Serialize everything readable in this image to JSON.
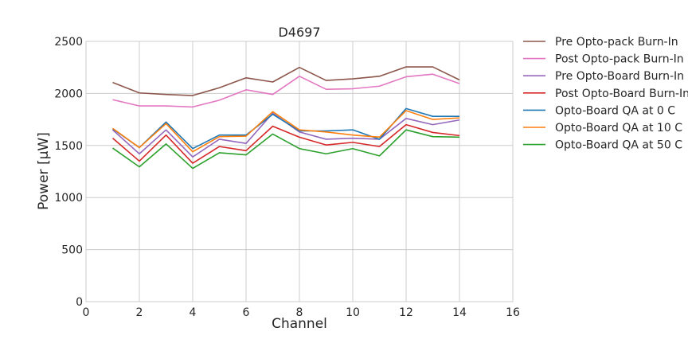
{
  "chart_data": {
    "type": "line",
    "title": "D4697",
    "xlabel": "Channel",
    "ylabel": "Power [μW]",
    "xlim": [
      0,
      16
    ],
    "ylim": [
      0,
      2500
    ],
    "xticks": [
      0,
      2,
      4,
      6,
      8,
      10,
      12,
      14,
      16
    ],
    "yticks": [
      0,
      500,
      1000,
      1500,
      2000,
      2500
    ],
    "grid": true,
    "legend_position": "outside-right-top",
    "x": [
      1,
      2,
      3,
      4,
      5,
      6,
      7,
      8,
      9,
      10,
      11,
      12,
      13,
      14
    ],
    "series": [
      {
        "name": "Pre Opto-pack Burn-In",
        "color": "#8c564b",
        "values": [
          2105,
          2005,
          1990,
          1980,
          2055,
          2150,
          2110,
          2250,
          2125,
          2140,
          2165,
          2255,
          2255,
          2130
        ]
      },
      {
        "name": "Post Opto-pack Burn-In",
        "color": "#e377c2",
        "values": [
          1940,
          1880,
          1880,
          1870,
          1935,
          2035,
          1990,
          2165,
          2040,
          2045,
          2070,
          2160,
          2185,
          2095
        ]
      },
      {
        "name": "Pre Opto-Board Burn-In",
        "color": "#9467bd",
        "values": [
          1650,
          1420,
          1650,
          1390,
          1560,
          1520,
          1810,
          1630,
          1560,
          1570,
          1560,
          1760,
          1700,
          1745
        ]
      },
      {
        "name": "Post Opto-Board Burn-In",
        "color": "#d62728",
        "values": [
          1570,
          1350,
          1600,
          1330,
          1490,
          1450,
          1685,
          1580,
          1505,
          1530,
          1490,
          1700,
          1625,
          1595
        ]
      },
      {
        "name": "Opto-Board QA at 0 C",
        "color": "#1f77b4",
        "values": [
          1660,
          1480,
          1725,
          1470,
          1600,
          1600,
          1800,
          1640,
          1640,
          1650,
          1560,
          1855,
          1780,
          1780
        ]
      },
      {
        "name": "Opto-Board QA at 10 C",
        "color": "#ff7f0e",
        "values": [
          1665,
          1480,
          1710,
          1440,
          1585,
          1590,
          1825,
          1650,
          1630,
          1600,
          1580,
          1835,
          1750,
          1765
        ]
      },
      {
        "name": "Opto-Board QA at 50 C",
        "color": "#2ca02c",
        "values": [
          1475,
          1295,
          1515,
          1280,
          1430,
          1410,
          1610,
          1470,
          1420,
          1470,
          1400,
          1650,
          1585,
          1580
        ]
      }
    ]
  }
}
